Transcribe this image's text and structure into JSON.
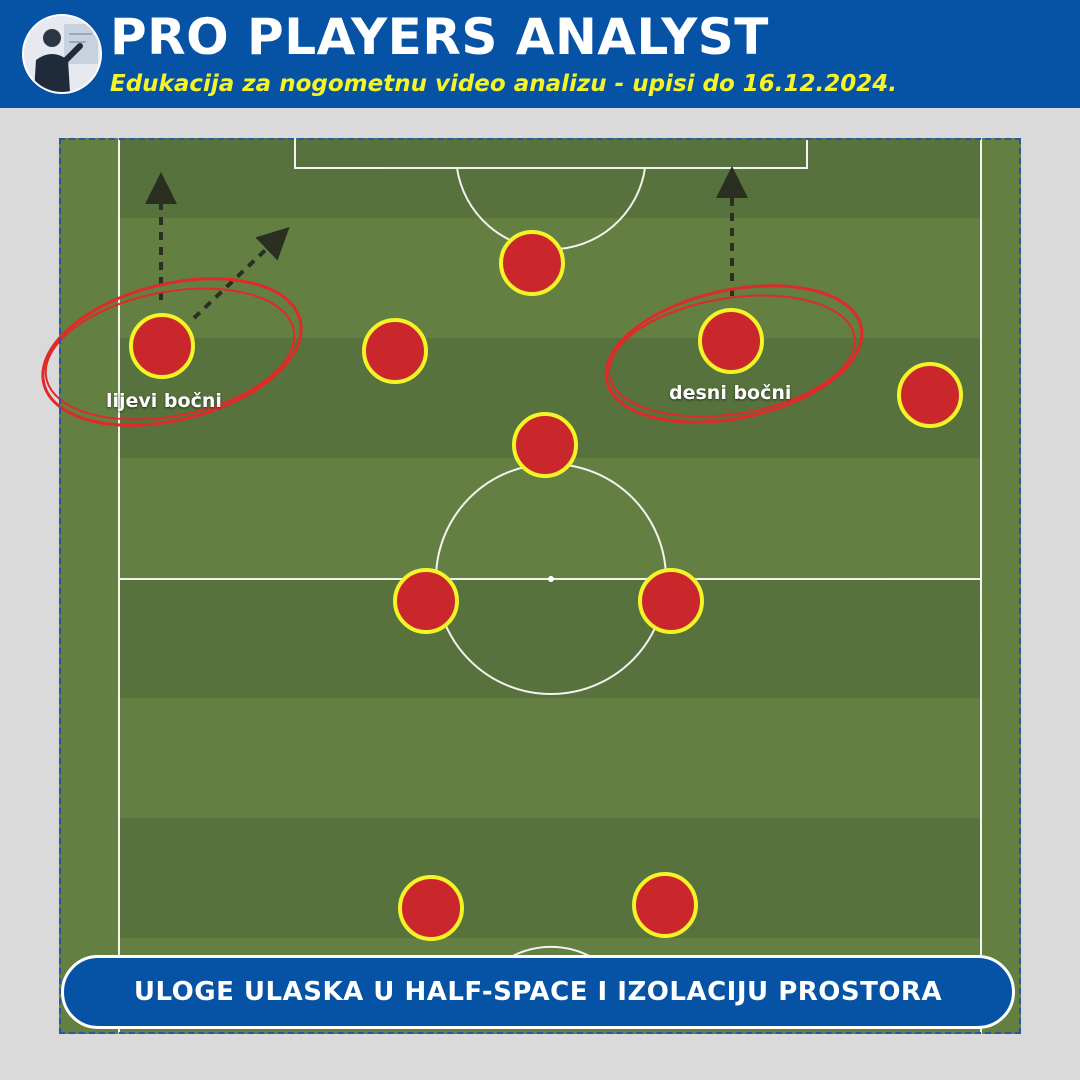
{
  "header": {
    "title": "PRO PLAYERS ANALYST",
    "subtitle": "Edukacija za nogometnu video analizu - upisi do 16.12.2024.",
    "avatar_icon": "presenter-avatar-icon"
  },
  "colors": {
    "header_bg": "#0653a6",
    "subtitle": "#f4f427",
    "pitch_dark": "#57723c",
    "pitch_light": "#637f42",
    "player_fill": "#c9272c",
    "player_ring": "#f4f427",
    "highlight": "#e02a2a",
    "arrow": "#2b2f22"
  },
  "labels": {
    "left_fullback": "lijevi bočni",
    "right_fullback": "desni bočni"
  },
  "players": [
    {
      "role": "striker"
    },
    {
      "role": "left-fullback-highlighted"
    },
    {
      "role": "left-midfielder"
    },
    {
      "role": "right-fullback-highlighted"
    },
    {
      "role": "right-winger"
    },
    {
      "role": "attacking-midfielder"
    },
    {
      "role": "left-central-midfielder"
    },
    {
      "role": "right-central-midfielder"
    },
    {
      "role": "left-centre-back"
    },
    {
      "role": "right-centre-back"
    }
  ],
  "caption": "ULOGE ULASKA U HALF-SPACE I IZOLACIJU PROSTORA"
}
